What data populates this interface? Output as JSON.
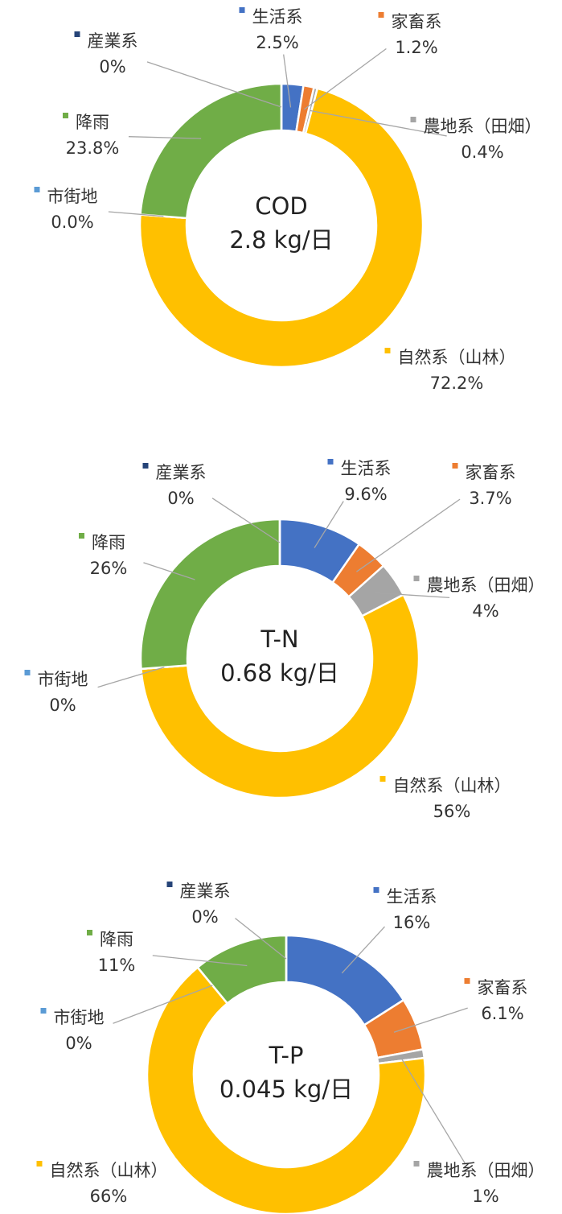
{
  "chart_data": [
    {
      "type": "pie",
      "title": "COD",
      "subtitle": "2.8 kg/日",
      "categories": [
        "生活系",
        "家畜系",
        "農地系（田畑）",
        "自然系（山林）",
        "市街地",
        "降雨",
        "産業系"
      ],
      "values": [
        2.5,
        1.2,
        0.4,
        72.2,
        0.0,
        23.8,
        0
      ],
      "value_labels": [
        "2.5%",
        "1.2%",
        "0.4%",
        "72.2%",
        "0.0%",
        "23.8%",
        "0%"
      ],
      "colors": [
        "#4472c4",
        "#ed7d31",
        "#a5a5a5",
        "#ffc000",
        "#5b9bd5",
        "#70ad47",
        "#264478"
      ]
    },
    {
      "type": "pie",
      "title": "T-N",
      "subtitle": "0.68 kg/日",
      "categories": [
        "生活系",
        "家畜系",
        "農地系（田畑）",
        "自然系（山林）",
        "市街地",
        "降雨",
        "産業系"
      ],
      "values": [
        9.6,
        3.7,
        4,
        56,
        0,
        26,
        0
      ],
      "value_labels": [
        "9.6%",
        "3.7%",
        "4%",
        "56%",
        "0%",
        "26%",
        "0%"
      ],
      "colors": [
        "#4472c4",
        "#ed7d31",
        "#a5a5a5",
        "#ffc000",
        "#5b9bd5",
        "#70ad47",
        "#264478"
      ]
    },
    {
      "type": "pie",
      "title": "T-P",
      "subtitle": "0.045 kg/日",
      "categories": [
        "生活系",
        "家畜系",
        "農地系（田畑）",
        "自然系（山林）",
        "市街地",
        "降雨",
        "産業系"
      ],
      "values": [
        16,
        6.1,
        1,
        66,
        0,
        11,
        0
      ],
      "value_labels": [
        "16%",
        "6.1%",
        "1%",
        "66%",
        "0%",
        "11%",
        "0%"
      ],
      "colors": [
        "#4472c4",
        "#ed7d31",
        "#a5a5a5",
        "#ffc000",
        "#5b9bd5",
        "#70ad47",
        "#264478"
      ]
    }
  ]
}
